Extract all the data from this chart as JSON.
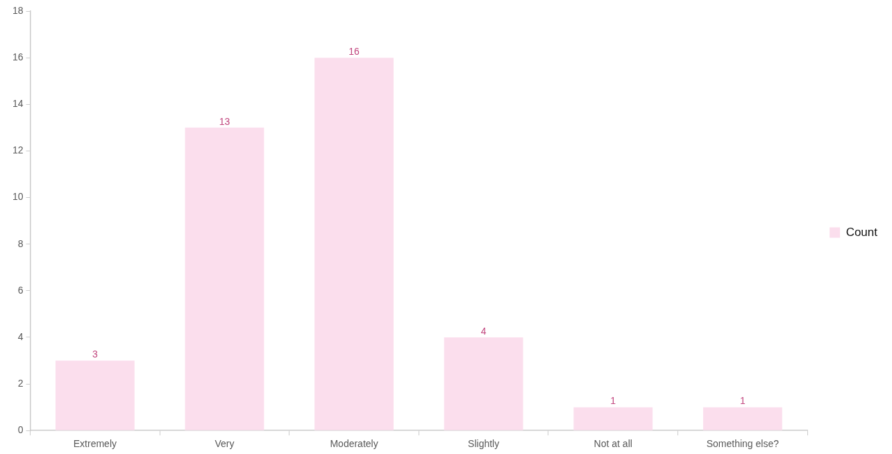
{
  "chart_data": {
    "type": "bar",
    "categories": [
      "Extremely",
      "Very",
      "Moderately",
      "Slightly",
      "Not at all",
      "Something else?"
    ],
    "series": [
      {
        "name": "Count",
        "color": "#fbdeed",
        "values": [
          3,
          13,
          16,
          4,
          1,
          1
        ]
      }
    ],
    "ylim": [
      0,
      18
    ],
    "yticks": [
      0,
      2,
      4,
      6,
      8,
      10,
      12,
      14,
      16,
      18
    ],
    "data_labels": true,
    "legend": "right"
  }
}
